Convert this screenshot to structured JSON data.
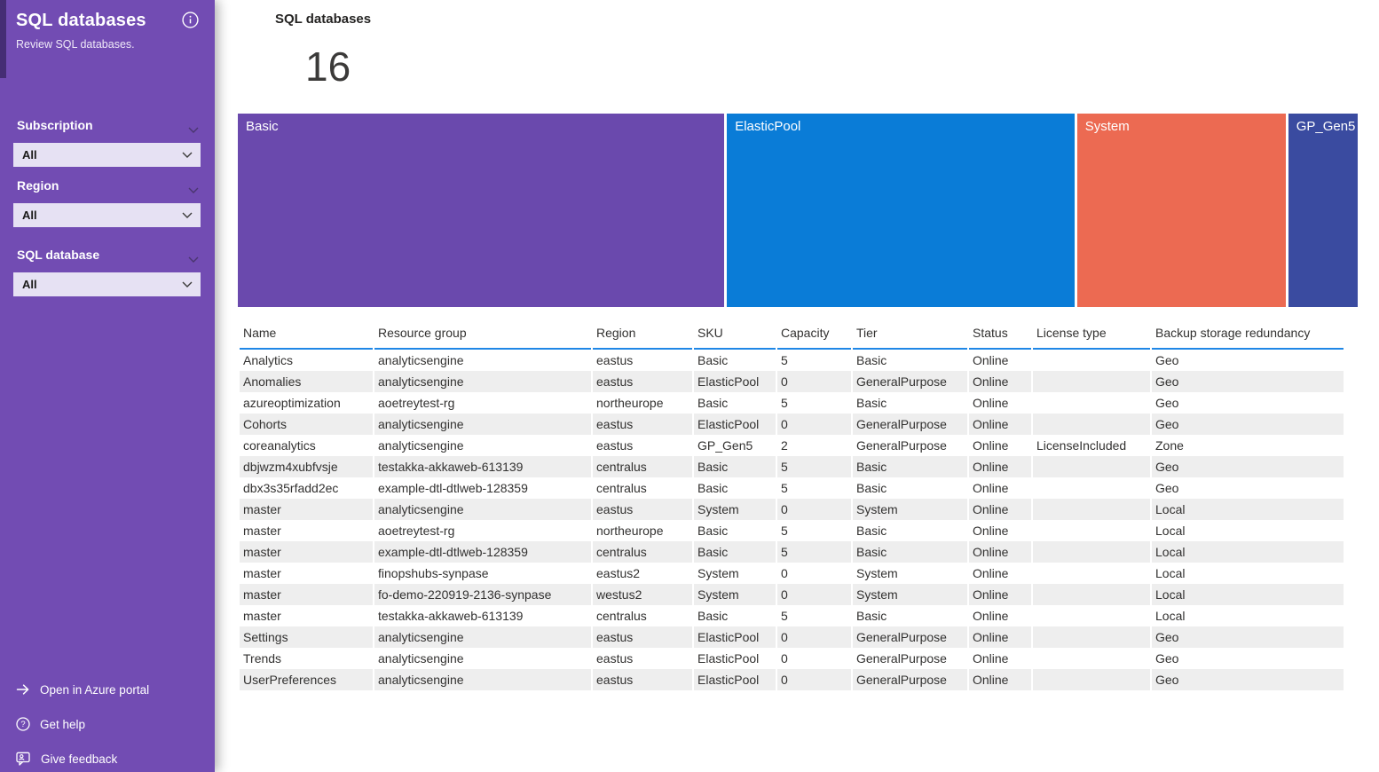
{
  "sidebar": {
    "title": "SQL databases",
    "subtitle": "Review SQL databases.",
    "parameters": [
      {
        "label": "Subscription",
        "value": "All"
      },
      {
        "label": "Region",
        "value": "All"
      },
      {
        "label": "SQL database",
        "value": "All"
      }
    ],
    "links": [
      {
        "label": "Open in Azure portal",
        "icon": "arrow-right-icon"
      },
      {
        "label": "Get help",
        "icon": "help-icon"
      },
      {
        "label": "Give feedback",
        "icon": "feedback-icon"
      }
    ]
  },
  "main": {
    "tile_title": "SQL databases",
    "count": "16"
  },
  "treemap": {
    "segments": [
      {
        "label": "Basic",
        "count": 7,
        "color": "#6a49ad"
      },
      {
        "label": "ElasticPool",
        "count": 5,
        "color": "#0a7cd7"
      },
      {
        "label": "System",
        "count": 3,
        "color": "#ec6a52"
      },
      {
        "label": "GP_Gen5",
        "count": 1,
        "color": "#3a4ba0"
      }
    ]
  },
  "chart_data": {
    "type": "treemap",
    "title": "SQL databases",
    "total": 16,
    "categories": [
      "Basic",
      "ElasticPool",
      "System",
      "GP_Gen5"
    ],
    "values": [
      7,
      5,
      3,
      1
    ],
    "colors": [
      "#6a49ad",
      "#0a7cd7",
      "#ec6a52",
      "#3a4ba0"
    ]
  },
  "table": {
    "columns": [
      "Name",
      "Resource group",
      "Region",
      "SKU",
      "Capacity",
      "Tier",
      "Status",
      "License type",
      "Backup storage redundancy"
    ],
    "rows": [
      [
        "Analytics",
        "analyticsengine",
        "eastus",
        "Basic",
        "5",
        "Basic",
        "Online",
        "",
        "Geo"
      ],
      [
        "Anomalies",
        "analyticsengine",
        "eastus",
        "ElasticPool",
        "0",
        "GeneralPurpose",
        "Online",
        "",
        "Geo"
      ],
      [
        "azureoptimization",
        "aoetreytest-rg",
        "northeurope",
        "Basic",
        "5",
        "Basic",
        "Online",
        "",
        "Geo"
      ],
      [
        "Cohorts",
        "analyticsengine",
        "eastus",
        "ElasticPool",
        "0",
        "GeneralPurpose",
        "Online",
        "",
        "Geo"
      ],
      [
        "coreanalytics",
        "analyticsengine",
        "eastus",
        "GP_Gen5",
        "2",
        "GeneralPurpose",
        "Online",
        "LicenseIncluded",
        "Zone"
      ],
      [
        "dbjwzm4xubfvsje",
        "testakka-akkaweb-613139",
        "centralus",
        "Basic",
        "5",
        "Basic",
        "Online",
        "",
        "Geo"
      ],
      [
        "dbx3s35rfadd2ec",
        "example-dtl-dtlweb-128359",
        "centralus",
        "Basic",
        "5",
        "Basic",
        "Online",
        "",
        "Geo"
      ],
      [
        "master",
        "analyticsengine",
        "eastus",
        "System",
        "0",
        "System",
        "Online",
        "",
        "Local"
      ],
      [
        "master",
        "aoetreytest-rg",
        "northeurope",
        "Basic",
        "5",
        "Basic",
        "Online",
        "",
        "Local"
      ],
      [
        "master",
        "example-dtl-dtlweb-128359",
        "centralus",
        "Basic",
        "5",
        "Basic",
        "Online",
        "",
        "Local"
      ],
      [
        "master",
        "finopshubs-synpase",
        "eastus2",
        "System",
        "0",
        "System",
        "Online",
        "",
        "Local"
      ],
      [
        "master",
        "fo-demo-220919-2136-synpase",
        "westus2",
        "System",
        "0",
        "System",
        "Online",
        "",
        "Local"
      ],
      [
        "master",
        "testakka-akkaweb-613139",
        "centralus",
        "Basic",
        "5",
        "Basic",
        "Online",
        "",
        "Local"
      ],
      [
        "Settings",
        "analyticsengine",
        "eastus",
        "ElasticPool",
        "0",
        "GeneralPurpose",
        "Online",
        "",
        "Geo"
      ],
      [
        "Trends",
        "analyticsengine",
        "eastus",
        "ElasticPool",
        "0",
        "GeneralPurpose",
        "Online",
        "",
        "Geo"
      ],
      [
        "UserPreferences",
        "analyticsengine",
        "eastus",
        "ElasticPool",
        "0",
        "GeneralPurpose",
        "Online",
        "",
        "Geo"
      ]
    ]
  },
  "colors": {
    "sidebar_background": "#724cb3",
    "select_background": "#e6e1f3",
    "header_accent_blue": "#1f87e6",
    "row_alternate": "#eeeeee"
  }
}
